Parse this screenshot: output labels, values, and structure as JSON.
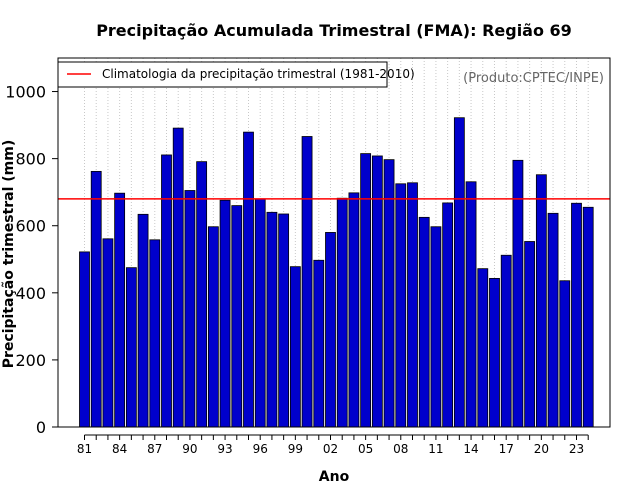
{
  "chart_data": {
    "type": "bar",
    "title": "Precipitação Acumulada Trimestral (FMA): Região 69",
    "xlabel": "Ano",
    "ylabel": "Precipitação trimestral (mm)",
    "ylim": [
      0,
      1100
    ],
    "yticks": [
      0,
      200,
      400,
      600,
      800,
      1000
    ],
    "grid": "vertical dotted",
    "x": [
      1981,
      1982,
      1983,
      1984,
      1985,
      1986,
      1987,
      1988,
      1989,
      1990,
      1991,
      1992,
      1993,
      1994,
      1995,
      1996,
      1997,
      1998,
      1999,
      2000,
      2001,
      2002,
      2003,
      2004,
      2005,
      2006,
      2007,
      2008,
      2009,
      2010,
      2011,
      2012,
      2013,
      2014,
      2015,
      2016,
      2017,
      2018,
      2019,
      2020,
      2021,
      2022,
      2023,
      2024
    ],
    "values": [
      522,
      762,
      561,
      697,
      475,
      634,
      558,
      811,
      891,
      705,
      791,
      597,
      676,
      660,
      879,
      680,
      640,
      635,
      478,
      866,
      497,
      580,
      682,
      698,
      815,
      808,
      797,
      725,
      728,
      625,
      597,
      668,
      922,
      731,
      472,
      443,
      512,
      795,
      553,
      752,
      637,
      436,
      667,
      655
    ],
    "xtick_labels": [
      "81",
      "84",
      "87",
      "90",
      "93",
      "96",
      "99",
      "02",
      "05",
      "08",
      "11",
      "14",
      "17",
      "20",
      "23"
    ],
    "reference_line": {
      "value": 680,
      "label": "Climatologia da precipitação trimestral (1981-2010)",
      "color": "#ff0000"
    },
    "bar_color": "#0000cc",
    "legend_position": "top-left",
    "credit": "(Produto:CPTEC/INPE)"
  }
}
